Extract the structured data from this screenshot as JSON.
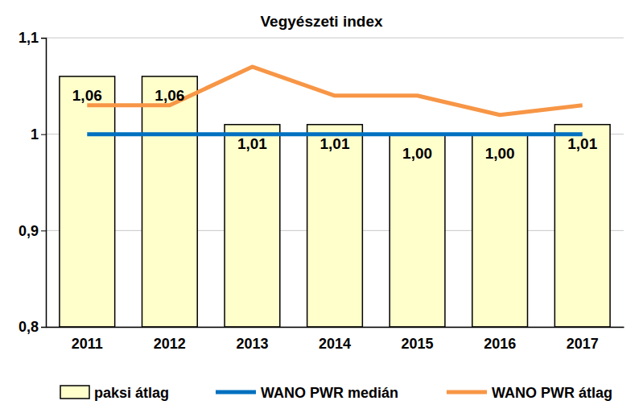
{
  "chart_data": {
    "type": "bar",
    "title": "Vegyészeti index",
    "categories": [
      "2011",
      "2012",
      "2013",
      "2014",
      "2015",
      "2016",
      "2017"
    ],
    "series": [
      {
        "name": "paksi átlag",
        "type": "bar",
        "color": "#ffffcc",
        "values": [
          1.06,
          1.06,
          1.01,
          1.01,
          1.0,
          1.0,
          1.01
        ],
        "value_labels": [
          "1,06",
          "1,06",
          "1,01",
          "1,01",
          "1,00",
          "1,00",
          "1,01"
        ]
      },
      {
        "name": "WANO PWR medián",
        "type": "line",
        "color": "#0070c0",
        "values": [
          1.0,
          1.0,
          1.0,
          1.0,
          1.0,
          1.0,
          1.0
        ]
      },
      {
        "name": "WANO PWR átlag",
        "type": "line",
        "color": "#f79646",
        "values": [
          1.03,
          1.03,
          1.07,
          1.04,
          1.04,
          1.02,
          1.03
        ]
      }
    ],
    "ylim": [
      0.8,
      1.1
    ],
    "yticks": [
      {
        "value": 0.8,
        "label": "0,8"
      },
      {
        "value": 0.9,
        "label": "0,9"
      },
      1,
      {
        "value": 1.1,
        "label": "1,1"
      }
    ],
    "grid": true,
    "data_labels": true,
    "legend": "bottom"
  }
}
